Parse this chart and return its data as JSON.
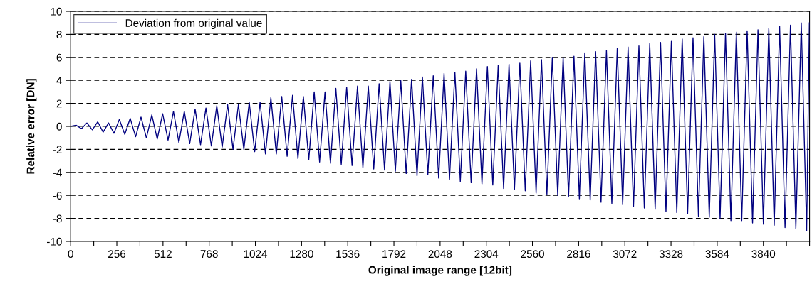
{
  "chart_data": {
    "type": "line",
    "xlabel": "Original image range [12bit]",
    "ylabel": "Relative error [DN]",
    "xlim": [
      0,
      4096
    ],
    "ylim": [
      -10,
      10
    ],
    "xticks": [
      0,
      {
        "value": 128,
        "label": null
      },
      256,
      {
        "value": 384,
        "label": null
      },
      512,
      {
        "value": 640,
        "label": null
      },
      768,
      {
        "value": 896,
        "label": null
      },
      1024,
      {
        "value": 1152,
        "label": null
      },
      1280,
      {
        "value": 1408,
        "label": null
      },
      1536,
      {
        "value": 1664,
        "label": null
      },
      1792,
      {
        "value": 1920,
        "label": null
      },
      2048,
      {
        "value": 2176,
        "label": null
      },
      2304,
      {
        "value": 2432,
        "label": null
      },
      2560,
      {
        "value": 2688,
        "label": null
      },
      2816,
      {
        "value": 2944,
        "label": null
      },
      3072,
      {
        "value": 3200,
        "label": null
      },
      3328,
      {
        "value": 3456,
        "label": null
      },
      3584,
      {
        "value": 3712,
        "label": null
      },
      3840,
      {
        "value": 3968,
        "label": null
      },
      {
        "value": 4096,
        "label": null
      }
    ],
    "yticks": [
      -10,
      -8,
      -6,
      -4,
      -2,
      0,
      2,
      4,
      6,
      8,
      10
    ],
    "grid": "y",
    "legend": "top left",
    "line_style": "solid",
    "marker": "none",
    "series": [
      {
        "name": "Deviation from original value",
        "color": "#000080",
        "x": [
          0,
          30,
          60,
          90,
          120,
          150,
          180,
          210,
          240,
          270,
          300,
          330,
          360,
          390,
          420,
          450,
          480,
          510,
          540,
          570,
          600,
          630,
          660,
          690,
          720,
          750,
          780,
          810,
          840,
          870,
          900,
          930,
          960,
          990,
          1020,
          1050,
          1080,
          1110,
          1140,
          1170,
          1200,
          1230,
          1260,
          1290,
          1320,
          1350,
          1380,
          1410,
          1440,
          1470,
          1500,
          1530,
          1560,
          1590,
          1620,
          1650,
          1680,
          1710,
          1740,
          1770,
          1800,
          1830,
          1860,
          1890,
          1920,
          1950,
          1980,
          2010,
          2040,
          2070,
          2100,
          2130,
          2160,
          2190,
          2220,
          2250,
          2280,
          2310,
          2340,
          2370,
          2400,
          2430,
          2460,
          2490,
          2520,
          2550,
          2580,
          2610,
          2640,
          2670,
          2700,
          2730,
          2760,
          2790,
          2820,
          2850,
          2880,
          2910,
          2940,
          2970,
          3000,
          3030,
          3060,
          3090,
          3120,
          3150,
          3180,
          3210,
          3240,
          3270,
          3300,
          3330,
          3360,
          3390,
          3420,
          3450,
          3480,
          3510,
          3540,
          3570,
          3600,
          3630,
          3660,
          3690,
          3720,
          3750,
          3780,
          3810,
          3840,
          3870,
          3900,
          3930,
          3960,
          3990,
          4020,
          4050,
          4080,
          4095
        ],
        "values": [
          0,
          0.1,
          -0.2,
          0.3,
          -0.3,
          0.4,
          -0.5,
          0.3,
          -0.6,
          0.6,
          -0.7,
          0.7,
          -0.9,
          0.8,
          -1.0,
          1.0,
          -1.1,
          1.1,
          -1.2,
          1.3,
          -1.4,
          1.3,
          -1.5,
          1.5,
          -1.6,
          1.6,
          -1.7,
          1.8,
          -1.8,
          1.9,
          -2.0,
          1.9,
          -2.0,
          2.1,
          -2.2,
          2.1,
          -2.4,
          2.5,
          -2.4,
          2.6,
          -2.6,
          2.7,
          -2.8,
          2.6,
          -2.9,
          3.0,
          -3.1,
          3.0,
          -3.2,
          3.3,
          -3.3,
          3.4,
          -3.4,
          3.5,
          -3.6,
          3.5,
          -3.7,
          3.7,
          -3.8,
          3.9,
          -3.9,
          4.0,
          -4.1,
          4.1,
          -4.3,
          4.3,
          -4.2,
          4.4,
          -4.5,
          4.6,
          -4.6,
          4.7,
          -4.8,
          4.8,
          -4.9,
          5.0,
          -5.0,
          5.2,
          -5.1,
          5.3,
          -5.4,
          5.4,
          -5.5,
          5.5,
          -5.6,
          5.7,
          -5.8,
          5.8,
          -5.9,
          6.0,
          -6.0,
          6.0,
          -6.1,
          6.1,
          -6.3,
          6.4,
          -6.4,
          6.5,
          -6.6,
          6.6,
          -6.7,
          6.8,
          -6.8,
          6.9,
          -7.0,
          7.0,
          -7.1,
          7.2,
          -7.2,
          7.3,
          -7.4,
          7.4,
          -7.5,
          7.6,
          -7.6,
          7.7,
          -7.8,
          7.8,
          -7.9,
          8.0,
          -8.0,
          8.1,
          -8.2,
          8.2,
          -8.2,
          8.3,
          -8.4,
          8.4,
          -8.5,
          8.5,
          -8.6,
          8.7,
          -8.8,
          8.8,
          -8.9,
          9.0,
          -9.1,
          9.0
        ]
      }
    ]
  }
}
